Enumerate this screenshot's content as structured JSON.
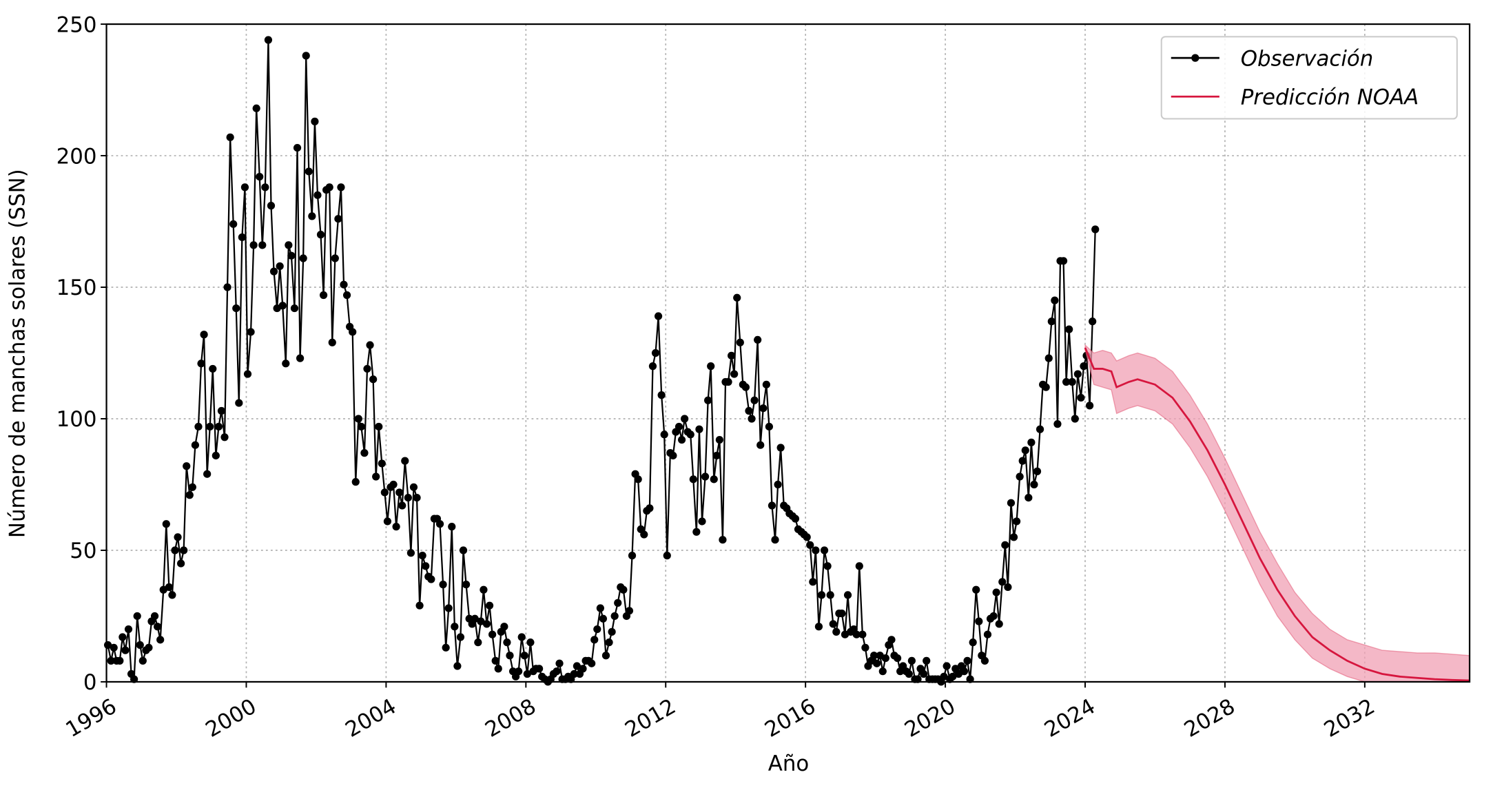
{
  "chart_data": {
    "type": "line",
    "xlabel": "Año",
    "ylabel": "Número de manchas solares (SSN)",
    "xlim": [
      1996,
      2035
    ],
    "ylim": [
      0,
      250
    ],
    "xticks": [
      1996,
      2000,
      2004,
      2008,
      2012,
      2016,
      2020,
      2024,
      2028,
      2032
    ],
    "yticks": [
      0,
      50,
      100,
      150,
      200,
      250
    ],
    "grid": true,
    "legend": "upper right",
    "series": [
      {
        "name": "Observación",
        "color": "#000000",
        "marker": "o",
        "x": [
          1996.04,
          1996.13,
          1996.21,
          1996.29,
          1996.38,
          1996.46,
          1996.54,
          1996.63,
          1996.71,
          1996.79,
          1996.88,
          1996.96,
          1997.04,
          1997.13,
          1997.21,
          1997.29,
          1997.38,
          1997.46,
          1997.54,
          1997.63,
          1997.71,
          1997.79,
          1997.88,
          1997.96,
          1998.04,
          1998.13,
          1998.21,
          1998.29,
          1998.38,
          1998.46,
          1998.54,
          1998.63,
          1998.71,
          1998.79,
          1998.88,
          1998.96,
          1999.04,
          1999.13,
          1999.21,
          1999.29,
          1999.38,
          1999.46,
          1999.54,
          1999.63,
          1999.71,
          1999.79,
          1999.88,
          1999.96,
          2000.04,
          2000.13,
          2000.21,
          2000.29,
          2000.38,
          2000.46,
          2000.54,
          2000.63,
          2000.71,
          2000.79,
          2000.88,
          2000.96,
          2001.04,
          2001.13,
          2001.21,
          2001.29,
          2001.38,
          2001.46,
          2001.54,
          2001.63,
          2001.71,
          2001.79,
          2001.88,
          2001.96,
          2002.04,
          2002.13,
          2002.21,
          2002.29,
          2002.38,
          2002.46,
          2002.54,
          2002.63,
          2002.71,
          2002.79,
          2002.88,
          2002.96,
          2003.04,
          2003.13,
          2003.21,
          2003.29,
          2003.38,
          2003.46,
          2003.54,
          2003.63,
          2003.71,
          2003.79,
          2003.88,
          2003.96,
          2004.04,
          2004.13,
          2004.21,
          2004.29,
          2004.38,
          2004.46,
          2004.54,
          2004.63,
          2004.71,
          2004.79,
          2004.88,
          2004.96,
          2005.04,
          2005.13,
          2005.21,
          2005.29,
          2005.38,
          2005.46,
          2005.54,
          2005.63,
          2005.71,
          2005.79,
          2005.88,
          2005.96,
          2006.04,
          2006.13,
          2006.21,
          2006.29,
          2006.38,
          2006.46,
          2006.54,
          2006.63,
          2006.71,
          2006.79,
          2006.88,
          2006.96,
          2007.04,
          2007.13,
          2007.21,
          2007.29,
          2007.38,
          2007.46,
          2007.54,
          2007.63,
          2007.71,
          2007.79,
          2007.88,
          2007.96,
          2008.04,
          2008.13,
          2008.21,
          2008.29,
          2008.38,
          2008.46,
          2008.54,
          2008.63,
          2008.71,
          2008.79,
          2008.88,
          2008.96,
          2009.04,
          2009.13,
          2009.21,
          2009.29,
          2009.38,
          2009.46,
          2009.54,
          2009.63,
          2009.71,
          2009.79,
          2009.88,
          2009.96,
          2010.04,
          2010.13,
          2010.21,
          2010.29,
          2010.38,
          2010.46,
          2010.54,
          2010.63,
          2010.71,
          2010.79,
          2010.88,
          2010.96,
          2011.04,
          2011.13,
          2011.21,
          2011.29,
          2011.38,
          2011.46,
          2011.54,
          2011.63,
          2011.71,
          2011.79,
          2011.88,
          2011.96,
          2012.04,
          2012.13,
          2012.21,
          2012.29,
          2012.38,
          2012.46,
          2012.54,
          2012.63,
          2012.71,
          2012.79,
          2012.88,
          2012.96,
          2013.04,
          2013.13,
          2013.21,
          2013.29,
          2013.38,
          2013.46,
          2013.54,
          2013.63,
          2013.71,
          2013.79,
          2013.88,
          2013.96,
          2014.04,
          2014.13,
          2014.21,
          2014.29,
          2014.38,
          2014.46,
          2014.54,
          2014.63,
          2014.71,
          2014.79,
          2014.88,
          2014.96,
          2015.04,
          2015.13,
          2015.21,
          2015.29,
          2015.38,
          2015.46,
          2015.54,
          2015.63,
          2015.71,
          2015.79,
          2015.88,
          2015.96,
          2016.04,
          2016.13,
          2016.21,
          2016.29,
          2016.38,
          2016.46,
          2016.54,
          2016.63,
          2016.71,
          2016.79,
          2016.88,
          2016.96,
          2017.04,
          2017.13,
          2017.21,
          2017.29,
          2017.38,
          2017.46,
          2017.54,
          2017.63,
          2017.71,
          2017.79,
          2017.88,
          2017.96,
          2018.04,
          2018.13,
          2018.21,
          2018.29,
          2018.38,
          2018.46,
          2018.54,
          2018.63,
          2018.71,
          2018.79,
          2018.88,
          2018.96,
          2019.04,
          2019.13,
          2019.21,
          2019.29,
          2019.38,
          2019.46,
          2019.54,
          2019.63,
          2019.71,
          2019.79,
          2019.88,
          2019.96,
          2020.04,
          2020.13,
          2020.21,
          2020.29,
          2020.38,
          2020.46,
          2020.54,
          2020.63,
          2020.71,
          2020.79,
          2020.88,
          2020.96,
          2021.04,
          2021.13,
          2021.21,
          2021.29,
          2021.38,
          2021.46,
          2021.54,
          2021.63,
          2021.71,
          2021.79,
          2021.88,
          2021.96,
          2022.04,
          2022.13,
          2022.21,
          2022.29,
          2022.38,
          2022.46,
          2022.54,
          2022.63,
          2022.71,
          2022.79,
          2022.88,
          2022.96,
          2023.04,
          2023.13,
          2023.21,
          2023.29,
          2023.38,
          2023.46,
          2023.54,
          2023.63,
          2023.71,
          2023.79,
          2023.88,
          2023.96,
          2024.04,
          2024.13,
          2024.21,
          2024.29
        ],
        "values": [
          14,
          8,
          13,
          8,
          8,
          17,
          12,
          20,
          3,
          1,
          25,
          14,
          8,
          12,
          13,
          23,
          25,
          21,
          16,
          35,
          60,
          36,
          33,
          50,
          55,
          45,
          50,
          82,
          71,
          74,
          90,
          97,
          121,
          132,
          79,
          97,
          119,
          86,
          97,
          103,
          93,
          150,
          207,
          174,
          142,
          106,
          169,
          188,
          117,
          133,
          166,
          218,
          192,
          166,
          188,
          244,
          181,
          156,
          142,
          158,
          143,
          121,
          166,
          162,
          142,
          203,
          123,
          161,
          238,
          194,
          177,
          213,
          185,
          170,
          147,
          187,
          188,
          129,
          161,
          176,
          188,
          151,
          147,
          135,
          133,
          76,
          100,
          97,
          87,
          119,
          128,
          115,
          78,
          97,
          83,
          72,
          61,
          74,
          75,
          59,
          72,
          67,
          84,
          70,
          49,
          74,
          70,
          29,
          48,
          44,
          40,
          39,
          62,
          62,
          60,
          37,
          13,
          28,
          59,
          21,
          6,
          17,
          50,
          37,
          24,
          22,
          24,
          15,
          23,
          35,
          22,
          29,
          18,
          8,
          5,
          19,
          21,
          15,
          10,
          4,
          2,
          4,
          17,
          10,
          3,
          15,
          4,
          5,
          5,
          2,
          1,
          0,
          1,
          3,
          4,
          7,
          1,
          1,
          2,
          1,
          3,
          6,
          3,
          5,
          8,
          8,
          7,
          16,
          20,
          28,
          24,
          10,
          15,
          19,
          25,
          30,
          36,
          35,
          25,
          27,
          48,
          79,
          77,
          58,
          56,
          65,
          66,
          120,
          125,
          139,
          109,
          94,
          48,
          87,
          86,
          95,
          97,
          92,
          100,
          95,
          94,
          77,
          57,
          96,
          61,
          78,
          107,
          120,
          77,
          86,
          92,
          54,
          114,
          114,
          124,
          117,
          146,
          129,
          113,
          112,
          103,
          100,
          107,
          130,
          90,
          104,
          113,
          97,
          67,
          54,
          75,
          89,
          67,
          66,
          64,
          63,
          62,
          58,
          57,
          56,
          55,
          52,
          38,
          50,
          21,
          33,
          50,
          44,
          33,
          22,
          19,
          26,
          26,
          18,
          33,
          19,
          20,
          18,
          44,
          18,
          13,
          6,
          8,
          10,
          7,
          10,
          4,
          9,
          14,
          16,
          10,
          9,
          4,
          6,
          4,
          3,
          8,
          1,
          1,
          5,
          3,
          8,
          1,
          1,
          1,
          1,
          0,
          2,
          6,
          1,
          2,
          5,
          3,
          6,
          4,
          8,
          1,
          15,
          35,
          23,
          10,
          8,
          18,
          24,
          25,
          34,
          22,
          38,
          52,
          36,
          68,
          55,
          61,
          78,
          84,
          88,
          70,
          91,
          75,
          80,
          96,
          113,
          112,
          123,
          137,
          145,
          98,
          160,
          160,
          114,
          134,
          114,
          100,
          117,
          108,
          120,
          124,
          105,
          137,
          172
        ]
      },
      {
        "name": "Predicción NOAA",
        "color": "#d6163e",
        "band_color": "#f0a0b4",
        "x": [
          2024.0,
          2024.25,
          2024.5,
          2024.75,
          2024.9,
          2025.25,
          2025.5,
          2026,
          2026.5,
          2027,
          2027.5,
          2028,
          2028.5,
          2029,
          2029.5,
          2030,
          2030.5,
          2031,
          2031.5,
          2032,
          2032.5,
          2033,
          2033.5,
          2034,
          2034.5,
          2035
        ],
        "values": [
          127,
          119,
          119,
          118,
          112,
          114,
          115,
          113,
          108,
          99,
          88,
          75,
          61,
          47,
          35,
          25,
          17,
          12,
          8,
          5,
          3,
          2,
          1.5,
          1,
          0.7,
          0.5
        ],
        "upper": [
          128,
          125,
          126,
          125,
          122,
          124,
          125,
          123,
          118,
          109,
          98,
          85,
          71,
          57,
          45,
          34,
          26,
          20,
          16,
          14,
          12,
          11.5,
          11,
          11,
          10.5,
          10
        ],
        "lower": [
          126,
          113,
          112,
          111,
          102,
          104,
          105,
          103,
          98,
          89,
          78,
          65,
          51,
          37,
          25,
          16,
          9,
          5,
          2,
          0,
          0,
          0,
          0,
          0,
          0,
          0
        ]
      }
    ]
  }
}
